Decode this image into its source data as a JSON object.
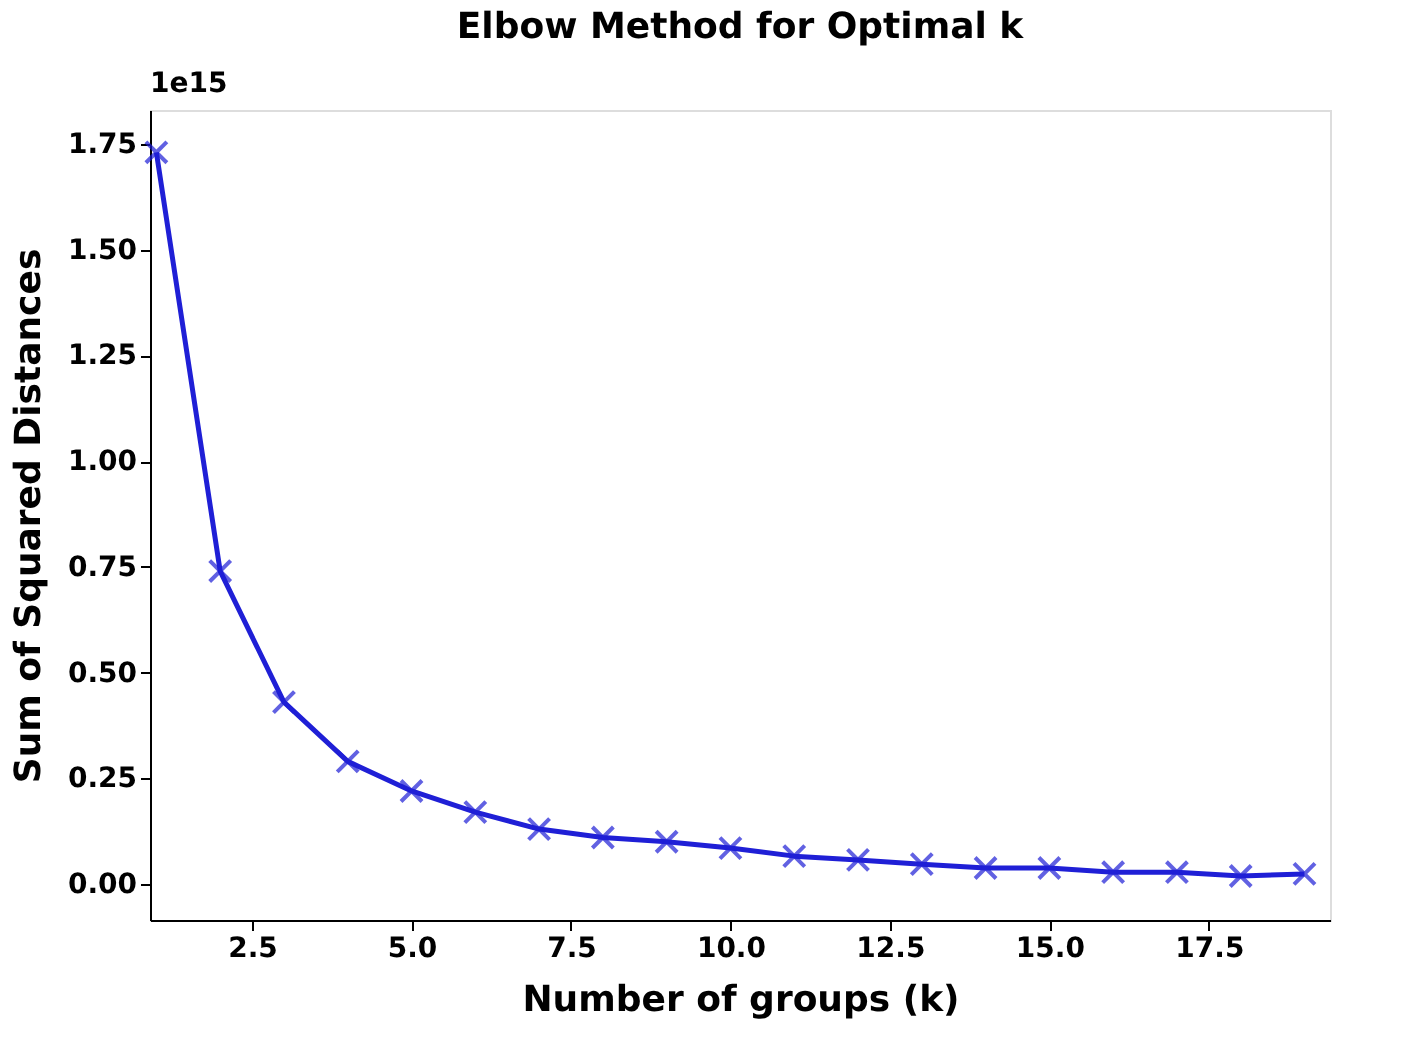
{
  "chart_data": {
    "type": "line",
    "title": "Elbow Method for Optimal k",
    "xlabel": "Number of groups (k)",
    "ylabel": "Sum of Squared Distances",
    "annotations": [
      "1e15"
    ],
    "x": [
      1,
      2,
      3,
      4,
      5,
      6,
      7,
      8,
      9,
      10,
      11,
      12,
      13,
      14,
      15,
      16,
      17,
      18,
      19
    ],
    "series": [
      {
        "color": "#1f1fd6",
        "values": [
          1.73,
          0.74,
          0.43,
          0.29,
          0.22,
          0.17,
          0.13,
          0.11,
          0.1,
          0.085,
          0.066,
          0.057,
          0.047,
          0.038,
          0.038,
          0.028,
          0.028,
          0.019,
          0.024
        ]
      }
    ],
    "xlim": [
      0.9,
      19.4
    ],
    "xticks": [
      2.5,
      {
        "value": 5,
        "label": "5.0"
      },
      7.5,
      {
        "value": 10,
        "label": "10.0"
      },
      12.5,
      {
        "value": 15,
        "label": "15.0"
      },
      17.5
    ],
    "ylim": [
      -0.085,
      1.83
    ],
    "yticks": [
      {
        "value": 0,
        "label": "0.00"
      },
      0.25,
      {
        "value": 0.5,
        "label": "0.50"
      },
      0.75,
      {
        "value": 1,
        "label": "1.00"
      },
      1.25,
      {
        "value": 1.5,
        "label": "1.50"
      },
      1.75
    ],
    "marker": "cross",
    "line_style": "solid",
    "grid": false
  }
}
